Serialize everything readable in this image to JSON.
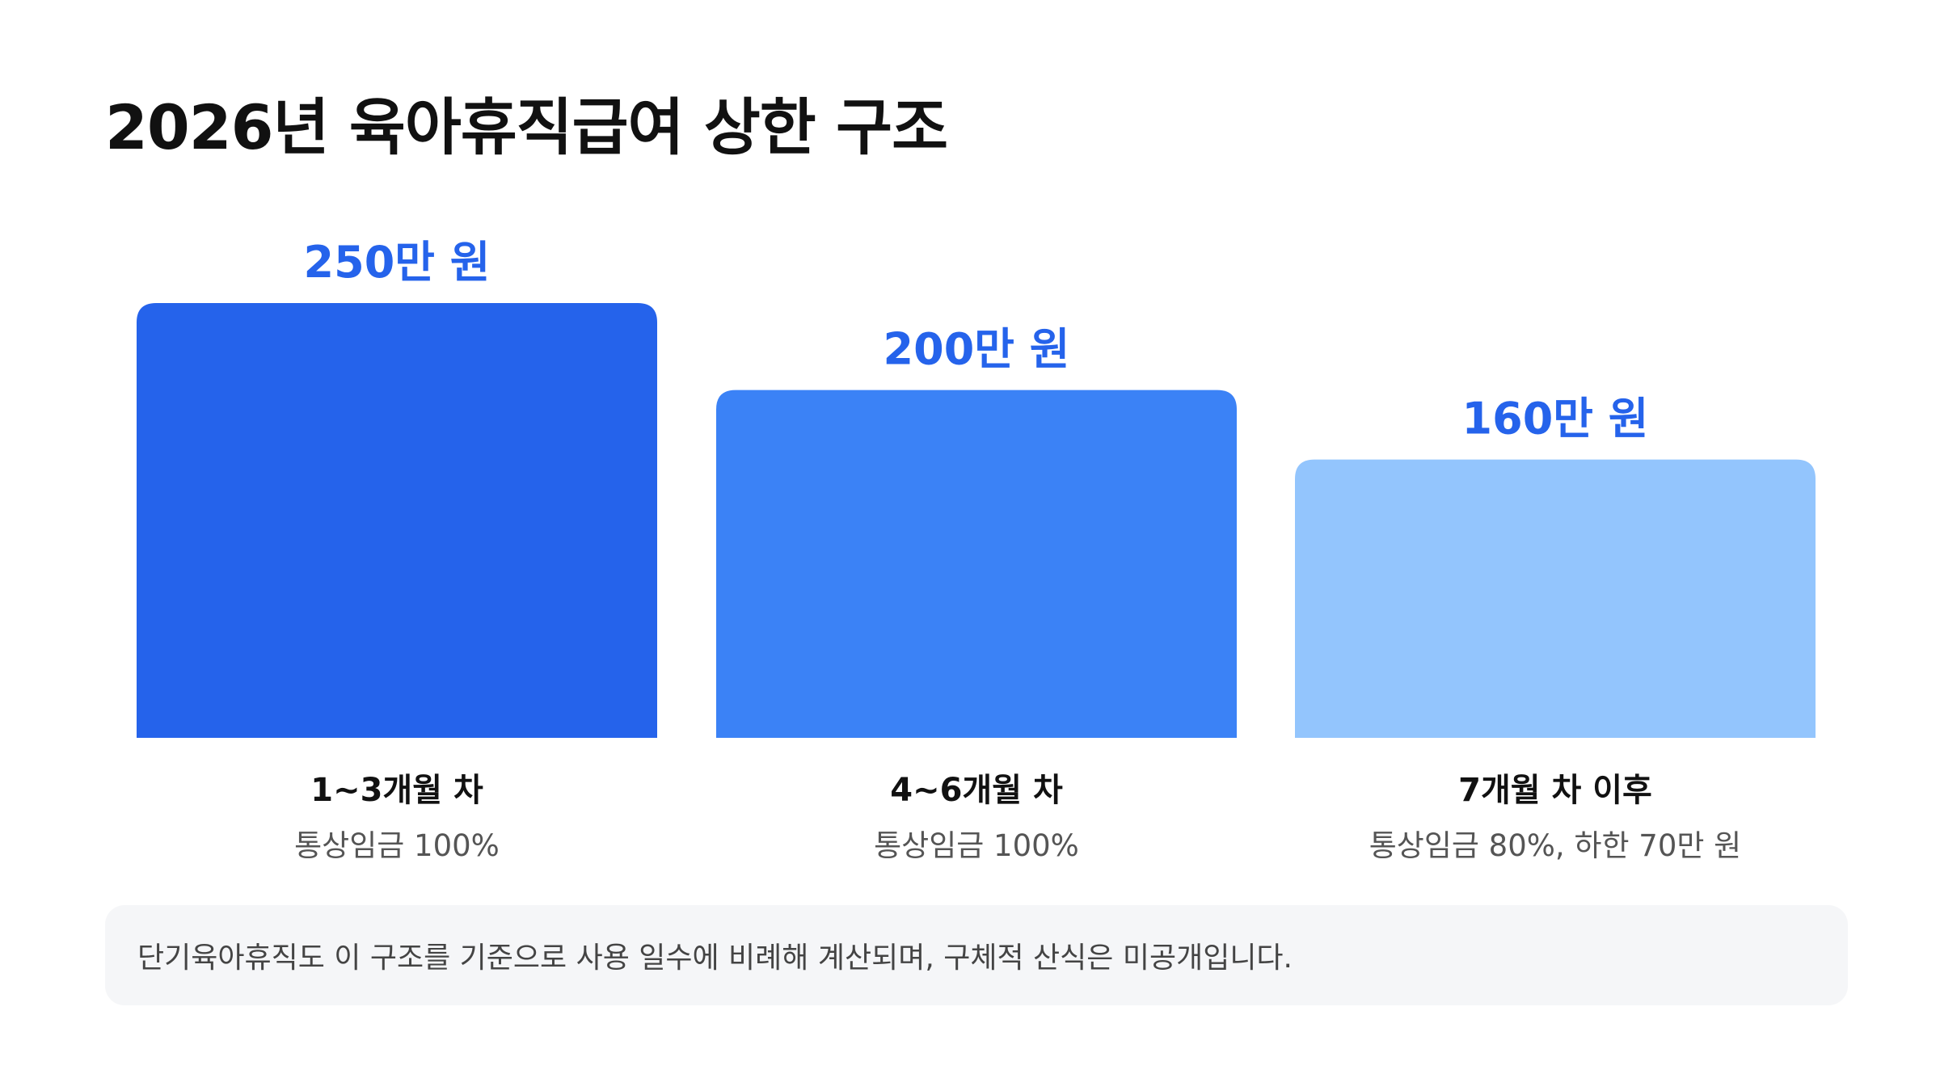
{
  "title": "2026년 육아휴직급여 상한 구조",
  "note": "단기육아휴직도 이 구조를 기준으로 사용 일수에 비례해 계산되며, 구체적 산식은 미공개입니다.",
  "colors": {
    "value_label": "#2563eb",
    "bars": [
      "#2563eb",
      "#3b82f6",
      "#93c5fd"
    ],
    "note_background": "#f5f6f8"
  },
  "chart_data": {
    "type": "bar",
    "categories": [
      "1~3개월 차",
      "4~6개월 차",
      "7개월 차 이후"
    ],
    "subcategories": [
      "통상임금 100%",
      "통상임금 100%",
      "통상임금 80%, 하한 70만 원"
    ],
    "values": [
      250,
      200,
      160
    ],
    "value_labels": [
      "250만 원",
      "200만 원",
      "160만 원"
    ],
    "ylim": [
      0,
      250
    ],
    "grid": false,
    "legend": "none"
  }
}
